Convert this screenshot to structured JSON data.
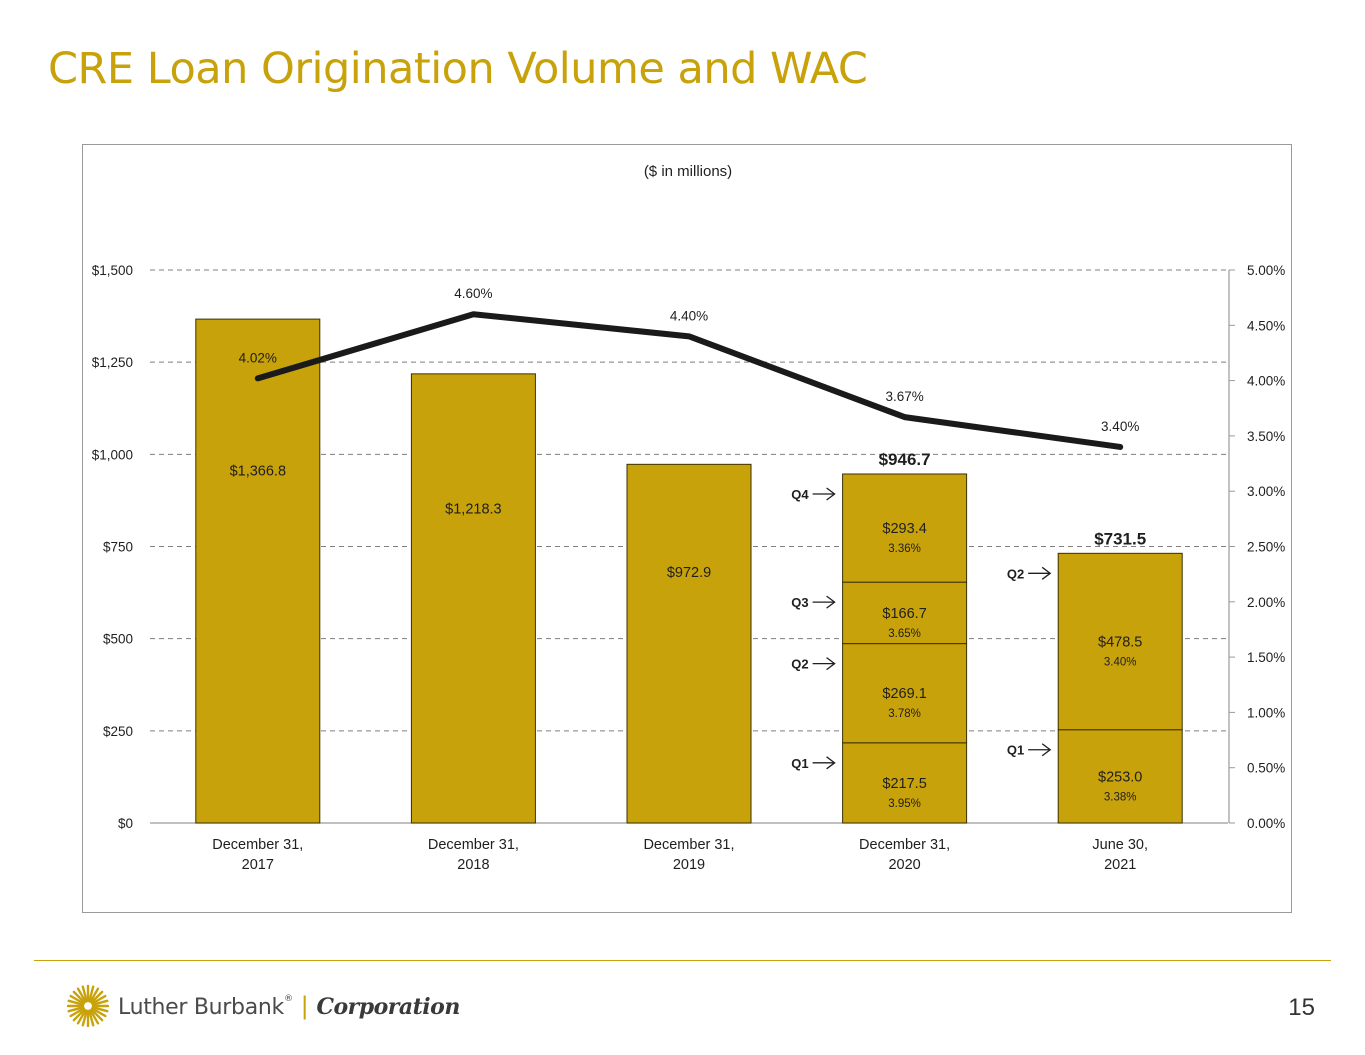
{
  "slide": {
    "title": "CRE Loan Origination Volume and WAC",
    "page_number": "15",
    "brand": {
      "name": "Luther Burbank",
      "registered_mark": "®",
      "separator": "|",
      "suffix": "Corporation",
      "logo_icon": "sunburst-icon"
    }
  },
  "colors": {
    "accent": "#C8A20B",
    "bar": "#C8A20B",
    "bar_outline": "#3a3000",
    "line": "#1a1a1a",
    "grid": "#7f7f7f",
    "text": "#1f1f1f"
  },
  "chart_data": {
    "type": "bar",
    "subtitle": "($ in millions)",
    "categories": [
      "December 31, 2017",
      "December 31, 2018",
      "December 31, 2019",
      "December 31, 2020",
      "June 30, 2021"
    ],
    "category_label_lines": [
      [
        "December 31,",
        "2017"
      ],
      [
        "December 31,",
        "2018"
      ],
      [
        "December 31,",
        "2019"
      ],
      [
        "December 31,",
        "2020"
      ],
      [
        "June 30,",
        "2021"
      ]
    ],
    "ylim": [
      0,
      1500
    ],
    "y_ticks": [
      0,
      250,
      500,
      750,
      1000,
      1250,
      1500
    ],
    "y_tick_labels": [
      "$0",
      "$250",
      "$500",
      "$750",
      "$1,000",
      "$1,250",
      "$1,500"
    ],
    "y2lim": [
      0,
      5.0
    ],
    "y2_ticks": [
      0,
      0.5,
      1.0,
      1.5,
      2.0,
      2.5,
      3.0,
      3.5,
      4.0,
      4.5,
      5.0
    ],
    "y2_tick_labels": [
      "0.00%",
      "0.50%",
      "1.00%",
      "1.50%",
      "2.00%",
      "2.50%",
      "3.00%",
      "3.50%",
      "4.00%",
      "4.50%",
      "5.00%"
    ],
    "grid": "horizontal dashed",
    "bars": [
      {
        "category": "December 31, 2017",
        "total": 1366.8,
        "total_label": "$1,366.8",
        "segments": []
      },
      {
        "category": "December 31, 2018",
        "total": 1218.3,
        "total_label": "$1,218.3",
        "segments": []
      },
      {
        "category": "December 31, 2019",
        "total": 972.9,
        "total_label": "$972.9",
        "segments": []
      },
      {
        "category": "December 31, 2020",
        "total": 946.7,
        "total_label": "$946.7",
        "segments": [
          {
            "quarter": "Q1",
            "value": 217.5,
            "value_label": "$217.5",
            "rate_label": "3.95%"
          },
          {
            "quarter": "Q2",
            "value": 269.1,
            "value_label": "$269.1",
            "rate_label": "3.78%"
          },
          {
            "quarter": "Q3",
            "value": 166.7,
            "value_label": "$166.7",
            "rate_label": "3.65%"
          },
          {
            "quarter": "Q4",
            "value": 293.4,
            "value_label": "$293.4",
            "rate_label": "3.36%"
          }
        ]
      },
      {
        "category": "June 30, 2021",
        "total": 731.5,
        "total_label": "$731.5",
        "segments": [
          {
            "quarter": "Q1",
            "value": 253.0,
            "value_label": "$253.0",
            "rate_label": "3.38%"
          },
          {
            "quarter": "Q2",
            "value": 478.5,
            "value_label": "$478.5",
            "rate_label": "3.40%"
          }
        ]
      }
    ],
    "line": {
      "axis": "secondary",
      "values": [
        4.02,
        4.6,
        4.4,
        3.67,
        3.4
      ],
      "labels": [
        "4.02%",
        "4.60%",
        "4.40%",
        "3.67%",
        "3.40%"
      ]
    },
    "quarter_arrow": "→"
  }
}
